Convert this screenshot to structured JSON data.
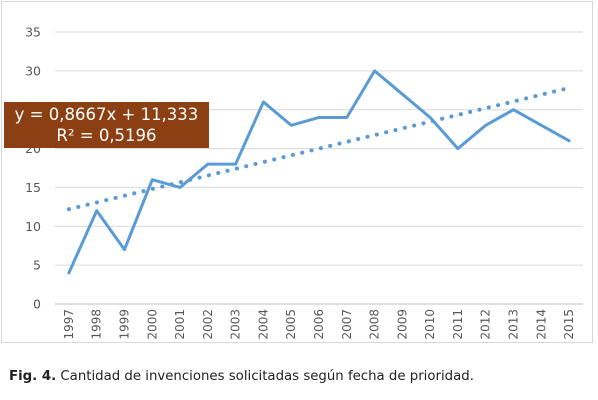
{
  "chart_data": {
    "type": "line",
    "categories": [
      "1997",
      "1998",
      "1999",
      "2000",
      "2001",
      "2002",
      "2003",
      "2004",
      "2005",
      "2006",
      "2007",
      "2008",
      "2009",
      "2010",
      "2011",
      "2012",
      "2013",
      "2014",
      "2015"
    ],
    "series": [
      {
        "values": [
          4,
          12,
          7,
          16,
          15,
          18,
          18,
          26,
          23,
          24,
          24,
          30,
          27,
          24,
          20,
          23,
          25,
          23,
          21
        ],
        "color": "#5b9bd5"
      }
    ],
    "trendline": {
      "type": "linear",
      "slope": 0.8667,
      "intercept": 11.333,
      "color": "#5b9bd5",
      "style": "dotted"
    },
    "trend_label": {
      "equation": "y = 0,8667x + 11,333",
      "r2": "R² = 0,5196",
      "background": "#8b3f12"
    },
    "y_ticks": [
      "0",
      "5",
      "10",
      "15",
      "20",
      "25",
      "30",
      "35"
    ],
    "ylim": [
      0,
      35
    ],
    "grid": true,
    "title": "",
    "xlabel": "",
    "ylabel": ""
  },
  "caption": {
    "prefix": "Fig. 4.",
    "text": " Cantidad de invenciones solicitadas según fecha de prioridad."
  }
}
